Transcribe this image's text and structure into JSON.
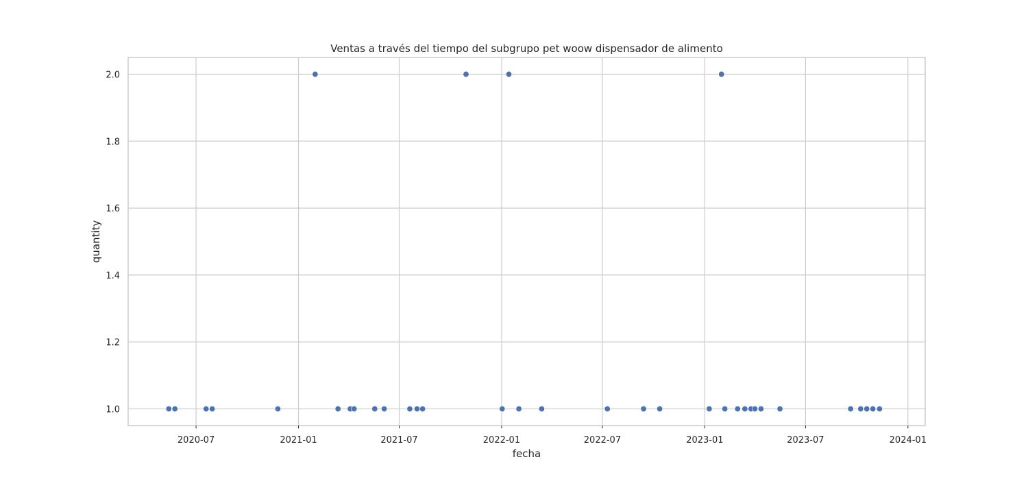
{
  "chart_data": {
    "type": "scatter",
    "title": "Ventas a través del tiempo del subgrupo pet woow dispensador de alimento",
    "xlabel": "fecha",
    "ylabel": "quantity",
    "grid": true,
    "xlim": [
      "2020-03-01",
      "2024-02-01"
    ],
    "ylim": [
      0.95,
      2.05
    ],
    "x_ticks": [
      {
        "date": "2020-07-01",
        "label": "2020-07"
      },
      {
        "date": "2021-01-01",
        "label": "2021-01"
      },
      {
        "date": "2021-07-01",
        "label": "2021-07"
      },
      {
        "date": "2022-01-01",
        "label": "2022-01"
      },
      {
        "date": "2022-07-01",
        "label": "2022-07"
      },
      {
        "date": "2023-01-01",
        "label": "2023-01"
      },
      {
        "date": "2023-07-01",
        "label": "2023-07"
      },
      {
        "date": "2024-01-01",
        "label": "2024-01"
      }
    ],
    "y_ticks": [
      {
        "value": 1.0,
        "label": "1.0"
      },
      {
        "value": 1.2,
        "label": "1.2"
      },
      {
        "value": 1.4,
        "label": "1.4"
      },
      {
        "value": 1.6,
        "label": "1.6"
      },
      {
        "value": 1.8,
        "label": "1.8"
      },
      {
        "value": 2.0,
        "label": "2.0"
      }
    ],
    "series": [
      {
        "name": "quantity",
        "color": "#4c72b0",
        "points": [
          {
            "x": "2020-05-13",
            "y": 1
          },
          {
            "x": "2020-05-24",
            "y": 1
          },
          {
            "x": "2020-07-19",
            "y": 1
          },
          {
            "x": "2020-07-30",
            "y": 1
          },
          {
            "x": "2020-11-25",
            "y": 1
          },
          {
            "x": "2021-01-31",
            "y": 2
          },
          {
            "x": "2021-03-13",
            "y": 1
          },
          {
            "x": "2021-04-04",
            "y": 1
          },
          {
            "x": "2021-04-11",
            "y": 1
          },
          {
            "x": "2021-05-18",
            "y": 1
          },
          {
            "x": "2021-06-04",
            "y": 1
          },
          {
            "x": "2021-07-20",
            "y": 1
          },
          {
            "x": "2021-08-02",
            "y": 1
          },
          {
            "x": "2021-08-12",
            "y": 1
          },
          {
            "x": "2021-10-29",
            "y": 2
          },
          {
            "x": "2022-01-02",
            "y": 1
          },
          {
            "x": "2022-01-14",
            "y": 2
          },
          {
            "x": "2022-02-01",
            "y": 1
          },
          {
            "x": "2022-03-14",
            "y": 1
          },
          {
            "x": "2022-07-10",
            "y": 1
          },
          {
            "x": "2022-09-13",
            "y": 1
          },
          {
            "x": "2022-10-12",
            "y": 1
          },
          {
            "x": "2023-01-09",
            "y": 1
          },
          {
            "x": "2023-01-31",
            "y": 2
          },
          {
            "x": "2023-02-06",
            "y": 1
          },
          {
            "x": "2023-03-01",
            "y": 1
          },
          {
            "x": "2023-03-14",
            "y": 1
          },
          {
            "x": "2023-03-25",
            "y": 1
          },
          {
            "x": "2023-04-01",
            "y": 1
          },
          {
            "x": "2023-04-12",
            "y": 1
          },
          {
            "x": "2023-05-16",
            "y": 1
          },
          {
            "x": "2023-09-20",
            "y": 1
          },
          {
            "x": "2023-10-08",
            "y": 1
          },
          {
            "x": "2023-10-19",
            "y": 1
          },
          {
            "x": "2023-10-30",
            "y": 1
          },
          {
            "x": "2023-11-11",
            "y": 1
          }
        ]
      }
    ]
  }
}
